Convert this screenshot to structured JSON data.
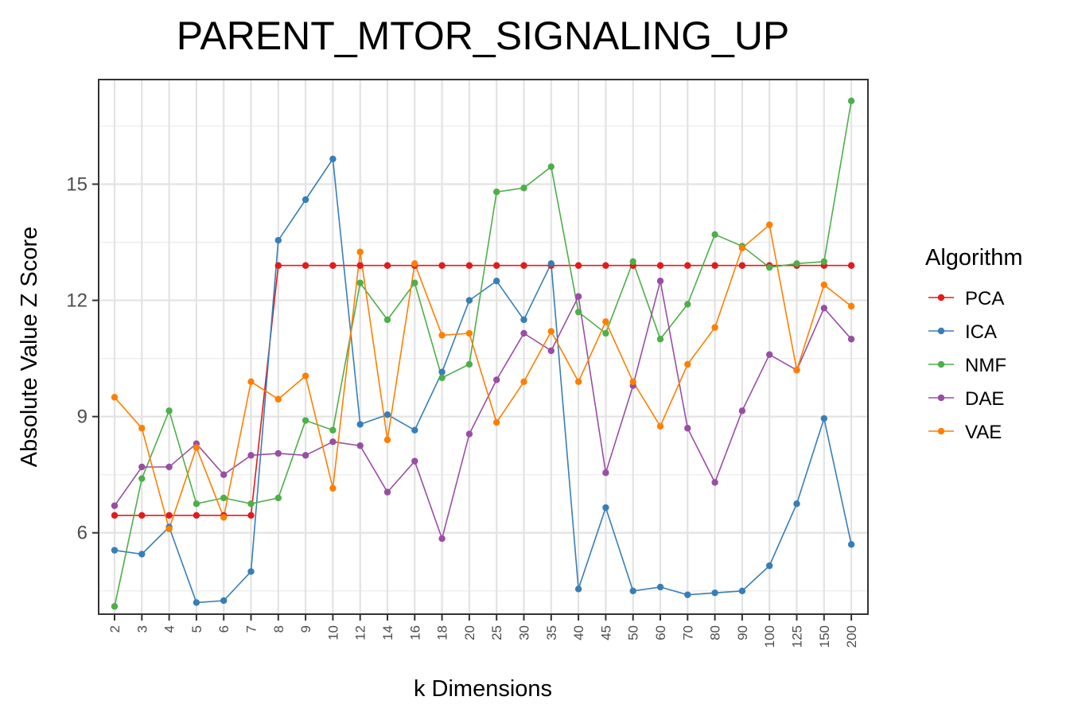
{
  "chart_data": {
    "type": "line",
    "title": "PARENT_MTOR_SIGNALING_UP",
    "xlabel": "k Dimensions",
    "ylabel": "Absolute Value Z Score",
    "categories": [
      "2",
      "3",
      "4",
      "5",
      "6",
      "7",
      "8",
      "9",
      "10",
      "12",
      "14",
      "16",
      "18",
      "20",
      "25",
      "30",
      "35",
      "40",
      "45",
      "50",
      "60",
      "70",
      "80",
      "90",
      "100",
      "125",
      "150",
      "200"
    ],
    "yticks": [
      6,
      9,
      12,
      15
    ],
    "ylim": [
      3.9,
      17.7
    ],
    "grid": true,
    "legend_title": "Algorithm",
    "legend_position": "right",
    "series": [
      {
        "name": "PCA",
        "color": "#e41a1c",
        "values": [
          6.45,
          6.45,
          6.45,
          6.45,
          6.45,
          6.45,
          12.9,
          12.9,
          12.9,
          12.9,
          12.9,
          12.9,
          12.9,
          12.9,
          12.9,
          12.9,
          12.9,
          12.9,
          12.9,
          12.9,
          12.9,
          12.9,
          12.9,
          12.9,
          12.9,
          12.9,
          12.9,
          12.9
        ]
      },
      {
        "name": "ICA",
        "color": "#377eb8",
        "values": [
          5.55,
          5.45,
          6.15,
          4.2,
          4.25,
          5.0,
          13.55,
          14.6,
          15.65,
          8.8,
          9.05,
          8.65,
          10.15,
          12.0,
          12.5,
          11.5,
          12.95,
          4.55,
          6.65,
          4.5,
          4.6,
          4.4,
          4.45,
          4.5,
          5.15,
          6.75,
          8.95,
          5.7
        ]
      },
      {
        "name": "NMF",
        "color": "#4daf4a",
        "values": [
          4.1,
          7.4,
          9.15,
          6.75,
          6.9,
          6.75,
          6.9,
          8.9,
          8.65,
          12.45,
          11.5,
          12.45,
          10.0,
          10.35,
          14.8,
          14.9,
          15.45,
          11.7,
          11.15,
          13.0,
          11.0,
          11.9,
          13.7,
          13.4,
          12.85,
          12.95,
          13.0,
          17.15
        ]
      },
      {
        "name": "DAE",
        "color": "#984ea3",
        "values": [
          6.7,
          7.7,
          7.7,
          8.3,
          7.5,
          8.0,
          8.05,
          8.0,
          8.35,
          8.25,
          7.05,
          7.85,
          5.85,
          8.55,
          9.95,
          11.15,
          10.7,
          12.1,
          7.55,
          9.8,
          12.5,
          8.7,
          7.3,
          9.15,
          10.6,
          10.2,
          11.8,
          11.0
        ]
      },
      {
        "name": "VAE",
        "color": "#ff7f00",
        "values": [
          9.5,
          8.7,
          6.1,
          8.2,
          6.4,
          9.9,
          9.45,
          10.05,
          7.15,
          13.25,
          8.4,
          12.95,
          11.1,
          11.15,
          8.85,
          9.9,
          11.2,
          9.9,
          11.45,
          9.9,
          8.75,
          10.35,
          11.3,
          13.35,
          13.95,
          10.2,
          12.4,
          11.85
        ]
      }
    ]
  }
}
